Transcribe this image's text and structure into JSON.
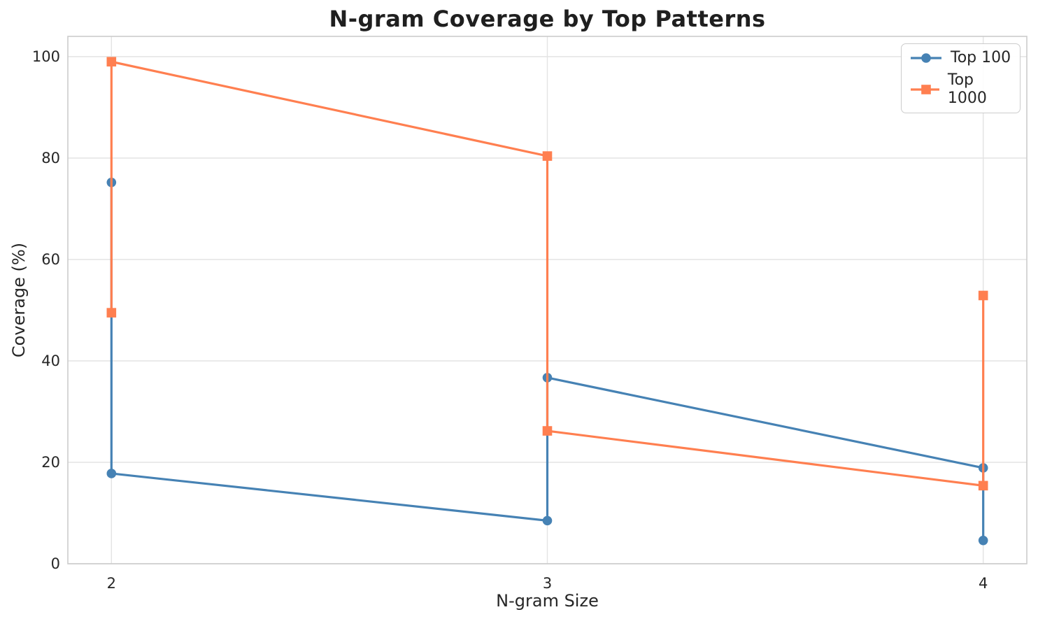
{
  "chart_data": {
    "type": "line",
    "title": "N-gram Coverage by Top Patterns",
    "xlabel": "N-gram Size",
    "ylabel": "Coverage (%)",
    "x_ticks": [
      2,
      3,
      4
    ],
    "y_ticks": [
      0,
      20,
      40,
      60,
      80,
      100
    ],
    "xlim": [
      1.9,
      4.1
    ],
    "ylim": [
      0,
      104
    ],
    "grid": true,
    "legend_position": "upper-right",
    "series": [
      {
        "name": "Top 100",
        "color": "#4682B4",
        "marker": "circle",
        "points": [
          [
            2,
            75.2
          ],
          [
            2,
            17.8
          ],
          [
            3,
            8.5
          ],
          [
            3,
            36.7
          ],
          [
            4,
            18.9
          ],
          [
            4,
            4.6
          ]
        ]
      },
      {
        "name": "Top 1000",
        "color": "#FF7F50",
        "marker": "square",
        "points": [
          [
            2,
            49.5
          ],
          [
            2,
            99.0
          ],
          [
            3,
            80.4
          ],
          [
            3,
            26.2
          ],
          [
            4,
            15.4
          ],
          [
            4,
            52.9
          ]
        ]
      }
    ],
    "style": {
      "background": "#ffffff",
      "grid_color": "#e3e3e3",
      "spine_color": "#cccccc",
      "text_color": "#262626",
      "title_color": "#1f1f1f"
    }
  }
}
